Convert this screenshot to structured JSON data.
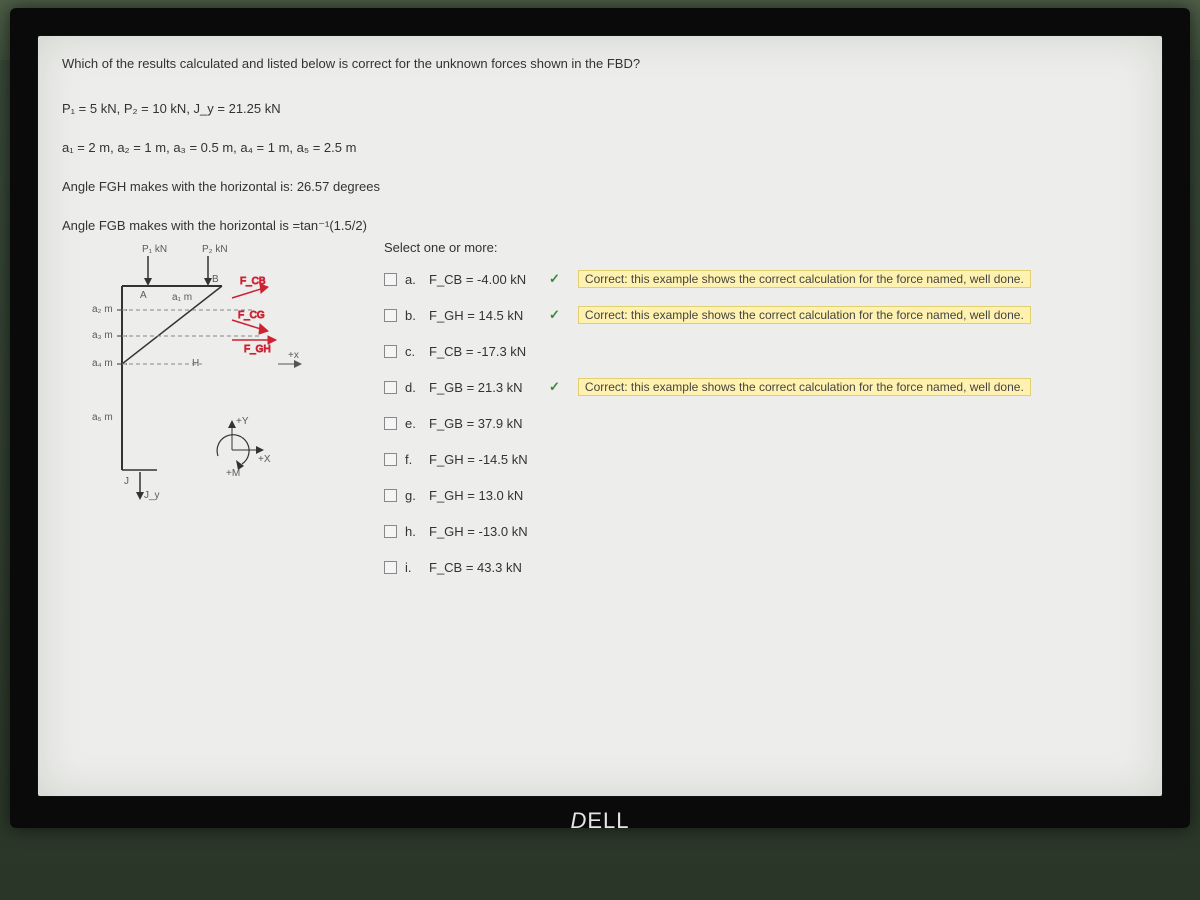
{
  "question": "Which of the results calculated and listed below is correct for the unknown forces shown in the FBD?",
  "params": {
    "forces": "P₁ = 5 kN, P₂ = 10 kN, J_y = 21.25 kN",
    "dims": "a₁ = 2 m, a₂ = 1 m, a₃ = 0.5 m, a₄ = 1 m, a₅ = 2.5 m",
    "angle_fgh": "Angle FGH makes with the horizontal is: 26.57 degrees",
    "angle_fgb": "Angle FGB makes with the horizontal is =tan⁻¹(1.5/2)"
  },
  "diagram": {
    "top_labels": {
      "p1": "P₁ kN",
      "p2": "P₂ kN",
      "A": "A",
      "B": "B"
    },
    "side_labels": [
      "a₂ m",
      "a₃ m",
      "a₄ m",
      "a₅ m"
    ],
    "a1": "a₁ m",
    "forces": {
      "fcb": "F_CB",
      "fcg": "F_CG",
      "fgh": "F_GH"
    },
    "nodes": {
      "H": "H",
      "J": "J",
      "Jy": "J_y",
      "M": "+M",
      "y": "+Y",
      "x": "+X",
      "xarrow": "+x"
    }
  },
  "answers": {
    "prompt": "Select one or more:",
    "feedback_text": "Correct: this example shows the correct calculation for the force named, well done.",
    "options": [
      {
        "letter": "a.",
        "text": "F_CB = -4.00 kN",
        "checked": true,
        "correct": true
      },
      {
        "letter": "b.",
        "text": "F_GH = 14.5 kN",
        "checked": true,
        "correct": true
      },
      {
        "letter": "c.",
        "text": "F_CB = -17.3 kN",
        "checked": false,
        "correct": false
      },
      {
        "letter": "d.",
        "text": "F_GB = 21.3 kN",
        "checked": true,
        "correct": true
      },
      {
        "letter": "e.",
        "text": "F_GB = 37.9 kN",
        "checked": false,
        "correct": false
      },
      {
        "letter": "f.",
        "text": "F_GH = -14.5 kN",
        "checked": false,
        "correct": false
      },
      {
        "letter": "g.",
        "text": "F_GH = 13.0 kN",
        "checked": false,
        "correct": false
      },
      {
        "letter": "h.",
        "text": "F_GH = -13.0 kN",
        "checked": false,
        "correct": false
      },
      {
        "letter": "i.",
        "text": "F_CB = 43.3 kN",
        "checked": false,
        "correct": false
      }
    ]
  },
  "bezel": "DELL",
  "colors": {
    "screen_bg": "#ededeb",
    "feedback_bg": "#fff2b0",
    "correct_check": "#3a8a3a",
    "force_red": "#c23"
  }
}
